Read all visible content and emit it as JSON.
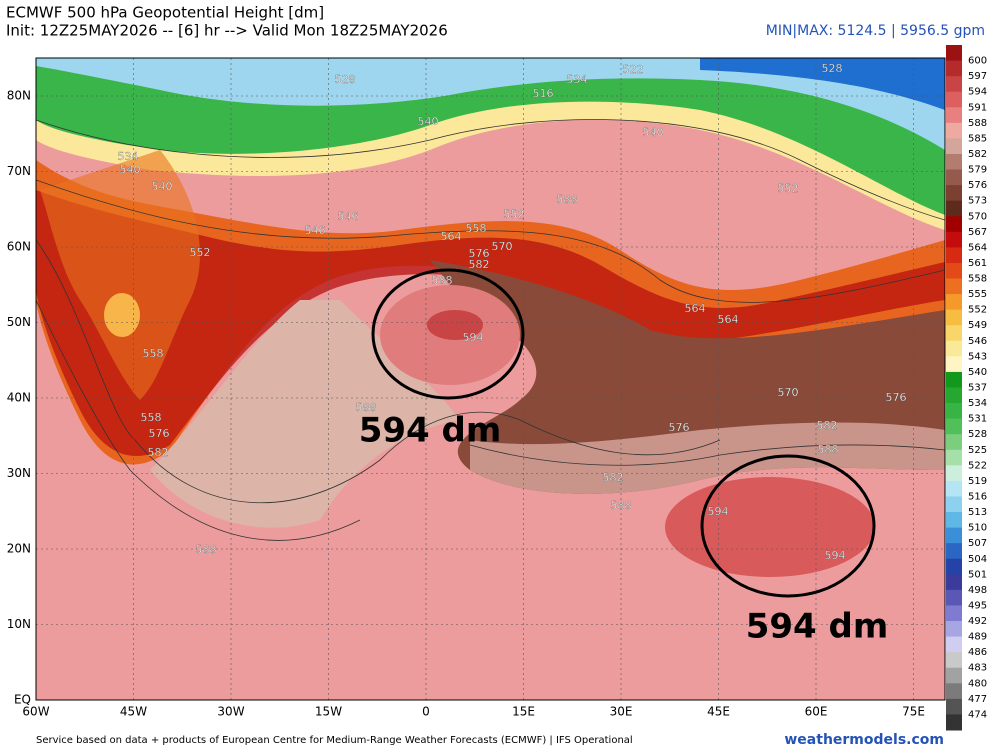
{
  "header": {
    "title": "ECMWF 500 hPa Geopotential Height [dm]",
    "init": "Init: 12Z25MAY2026 -- [6] hr --> Valid Mon 18Z25MAY2026",
    "minmax": "MIN|MAX: 5124.5 | 5956.5 gpm"
  },
  "map": {
    "lat_labels": [
      "80N",
      "70N",
      "60N",
      "50N",
      "40N",
      "30N",
      "20N",
      "10N",
      "EQ"
    ],
    "lon_labels": [
      "60W",
      "45W",
      "30W",
      "15W",
      "0",
      "15E",
      "30E",
      "45E",
      "60E",
      "75E"
    ],
    "contour_labels": [
      "528",
      "522",
      "534",
      "516",
      "528",
      "534",
      "540",
      "540",
      "540",
      "540",
      "546",
      "546",
      "552",
      "552",
      "552",
      "564",
      "558",
      "570",
      "576",
      "582",
      "588",
      "594",
      "558",
      "564",
      "558",
      "564",
      "576",
      "582",
      "588",
      "570",
      "576",
      "576",
      "582",
      "588",
      "582",
      "588",
      "594",
      "594",
      "588",
      "588"
    ],
    "annotations": [
      "594 dm",
      "594 dm"
    ]
  },
  "colorbar": {
    "labels": [
      "600",
      "597",
      "594",
      "591",
      "588",
      "585",
      "582",
      "579",
      "576",
      "573",
      "570",
      "567",
      "564",
      "561",
      "558",
      "555",
      "552",
      "549",
      "546",
      "543",
      "540",
      "537",
      "534",
      "531",
      "528",
      "525",
      "522",
      "519",
      "516",
      "513",
      "510",
      "507",
      "504",
      "501",
      "498",
      "495",
      "492",
      "489",
      "486",
      "483",
      "480",
      "477",
      "474"
    ]
  },
  "footer": {
    "credit": "Service based on data + products of European Centre for Medium-Range Weather Forecasts (ECMWF) | IFS Operational",
    "brand": "weathermodels.com"
  }
}
